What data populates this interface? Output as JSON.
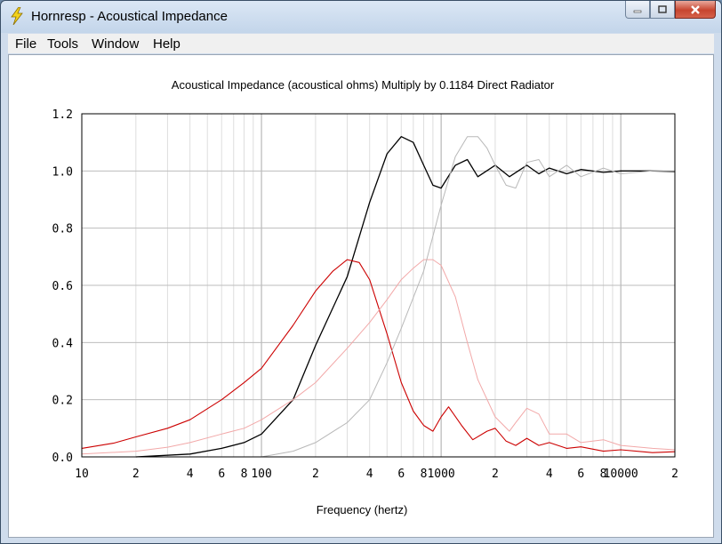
{
  "window": {
    "title": "Hornresp - Acoustical Impedance",
    "icon": "lightning-bolt-icon"
  },
  "menu": {
    "items": [
      "File",
      "Tools",
      "Window",
      "Help"
    ]
  },
  "chart_data": {
    "type": "line",
    "title": "Acoustical Impedance (acoustical ohms)   Multiply by 0.1184   Direct Radiator",
    "xlabel": "Frequency (hertz)",
    "ylabel": "",
    "x_scale": "log",
    "xlim": [
      10,
      20000
    ],
    "ylim": [
      0,
      1.2
    ],
    "grid": true,
    "x_tick_labels": [
      {
        "value": 10,
        "label": "10"
      },
      {
        "value": 20,
        "label": "2"
      },
      {
        "value": 40,
        "label": "4"
      },
      {
        "value": 60,
        "label": "6"
      },
      {
        "value": 80,
        "label": "8"
      },
      {
        "value": 100,
        "label": "100"
      },
      {
        "value": 200,
        "label": "2"
      },
      {
        "value": 400,
        "label": "4"
      },
      {
        "value": 600,
        "label": "6"
      },
      {
        "value": 800,
        "label": "8"
      },
      {
        "value": 1000,
        "label": "1000"
      },
      {
        "value": 2000,
        "label": "2"
      },
      {
        "value": 4000,
        "label": "4"
      },
      {
        "value": 6000,
        "label": "6"
      },
      {
        "value": 8000,
        "label": "8"
      },
      {
        "value": 10000,
        "label": "10000"
      },
      {
        "value": 20000,
        "label": "2"
      }
    ],
    "y_tick_labels": [
      "0.0",
      "0.2",
      "0.4",
      "0.6",
      "0.8",
      "1.0",
      "1.2"
    ],
    "y_ticks": [
      0,
      0.2,
      0.4,
      0.6,
      0.8,
      1.0,
      1.2
    ],
    "series": [
      {
        "color": "#000000",
        "width": 1.3,
        "x": [
          20,
          40,
          60,
          80,
          100,
          150,
          200,
          300,
          400,
          500,
          600,
          700,
          800,
          900,
          1000,
          1200,
          1400,
          1600,
          2000,
          2400,
          3000,
          3500,
          4000,
          5000,
          6000,
          8000,
          10000,
          15000,
          20000
        ],
        "y": [
          0.0,
          0.01,
          0.03,
          0.05,
          0.08,
          0.2,
          0.39,
          0.63,
          0.89,
          1.06,
          1.12,
          1.1,
          1.02,
          0.95,
          0.94,
          1.02,
          1.04,
          0.98,
          1.02,
          0.98,
          1.02,
          0.99,
          1.01,
          0.99,
          1.005,
          0.995,
          1.0,
          1.0,
          0.998
        ]
      },
      {
        "color": "#cc0000",
        "width": 1.1,
        "x": [
          10,
          15,
          20,
          30,
          40,
          60,
          80,
          100,
          150,
          200,
          250,
          300,
          350,
          400,
          500,
          600,
          700,
          800,
          900,
          1000,
          1100,
          1300,
          1500,
          1800,
          2000,
          2300,
          2600,
          3000,
          3500,
          4000,
          5000,
          6000,
          8000,
          10000,
          15000,
          20000
        ],
        "y": [
          0.03,
          0.048,
          0.07,
          0.1,
          0.13,
          0.2,
          0.26,
          0.31,
          0.46,
          0.58,
          0.65,
          0.69,
          0.68,
          0.62,
          0.43,
          0.26,
          0.16,
          0.11,
          0.09,
          0.14,
          0.175,
          0.11,
          0.06,
          0.09,
          0.1,
          0.055,
          0.04,
          0.065,
          0.04,
          0.05,
          0.03,
          0.035,
          0.02,
          0.025,
          0.015,
          0.018
        ]
      },
      {
        "color": "#f2a8a8",
        "width": 1.0,
        "x": [
          10,
          20,
          30,
          40,
          60,
          80,
          100,
          150,
          200,
          300,
          400,
          500,
          600,
          700,
          800,
          900,
          1000,
          1200,
          1400,
          1600,
          2000,
          2400,
          2600,
          3000,
          3500,
          4000,
          5000,
          6000,
          8000,
          10000,
          15000,
          20000
        ],
        "y": [
          0.01,
          0.02,
          0.034,
          0.05,
          0.08,
          0.1,
          0.13,
          0.2,
          0.26,
          0.38,
          0.47,
          0.55,
          0.62,
          0.66,
          0.69,
          0.69,
          0.67,
          0.56,
          0.4,
          0.27,
          0.14,
          0.09,
          0.12,
          0.17,
          0.15,
          0.08,
          0.08,
          0.05,
          0.06,
          0.04,
          0.03,
          0.025
        ]
      },
      {
        "color": "#b8b8b8",
        "width": 1.0,
        "x": [
          100,
          150,
          200,
          300,
          400,
          500,
          600,
          800,
          1000,
          1200,
          1400,
          1600,
          1800,
          2000,
          2300,
          2600,
          3000,
          3500,
          4000,
          5000,
          6000,
          8000,
          10000,
          15000,
          20000
        ],
        "y": [
          0.0,
          0.02,
          0.05,
          0.12,
          0.2,
          0.33,
          0.45,
          0.65,
          0.88,
          1.05,
          1.12,
          1.12,
          1.08,
          1.02,
          0.95,
          0.94,
          1.03,
          1.04,
          0.98,
          1.02,
          0.98,
          1.01,
          0.99,
          1.0,
          1.0
        ]
      }
    ]
  }
}
